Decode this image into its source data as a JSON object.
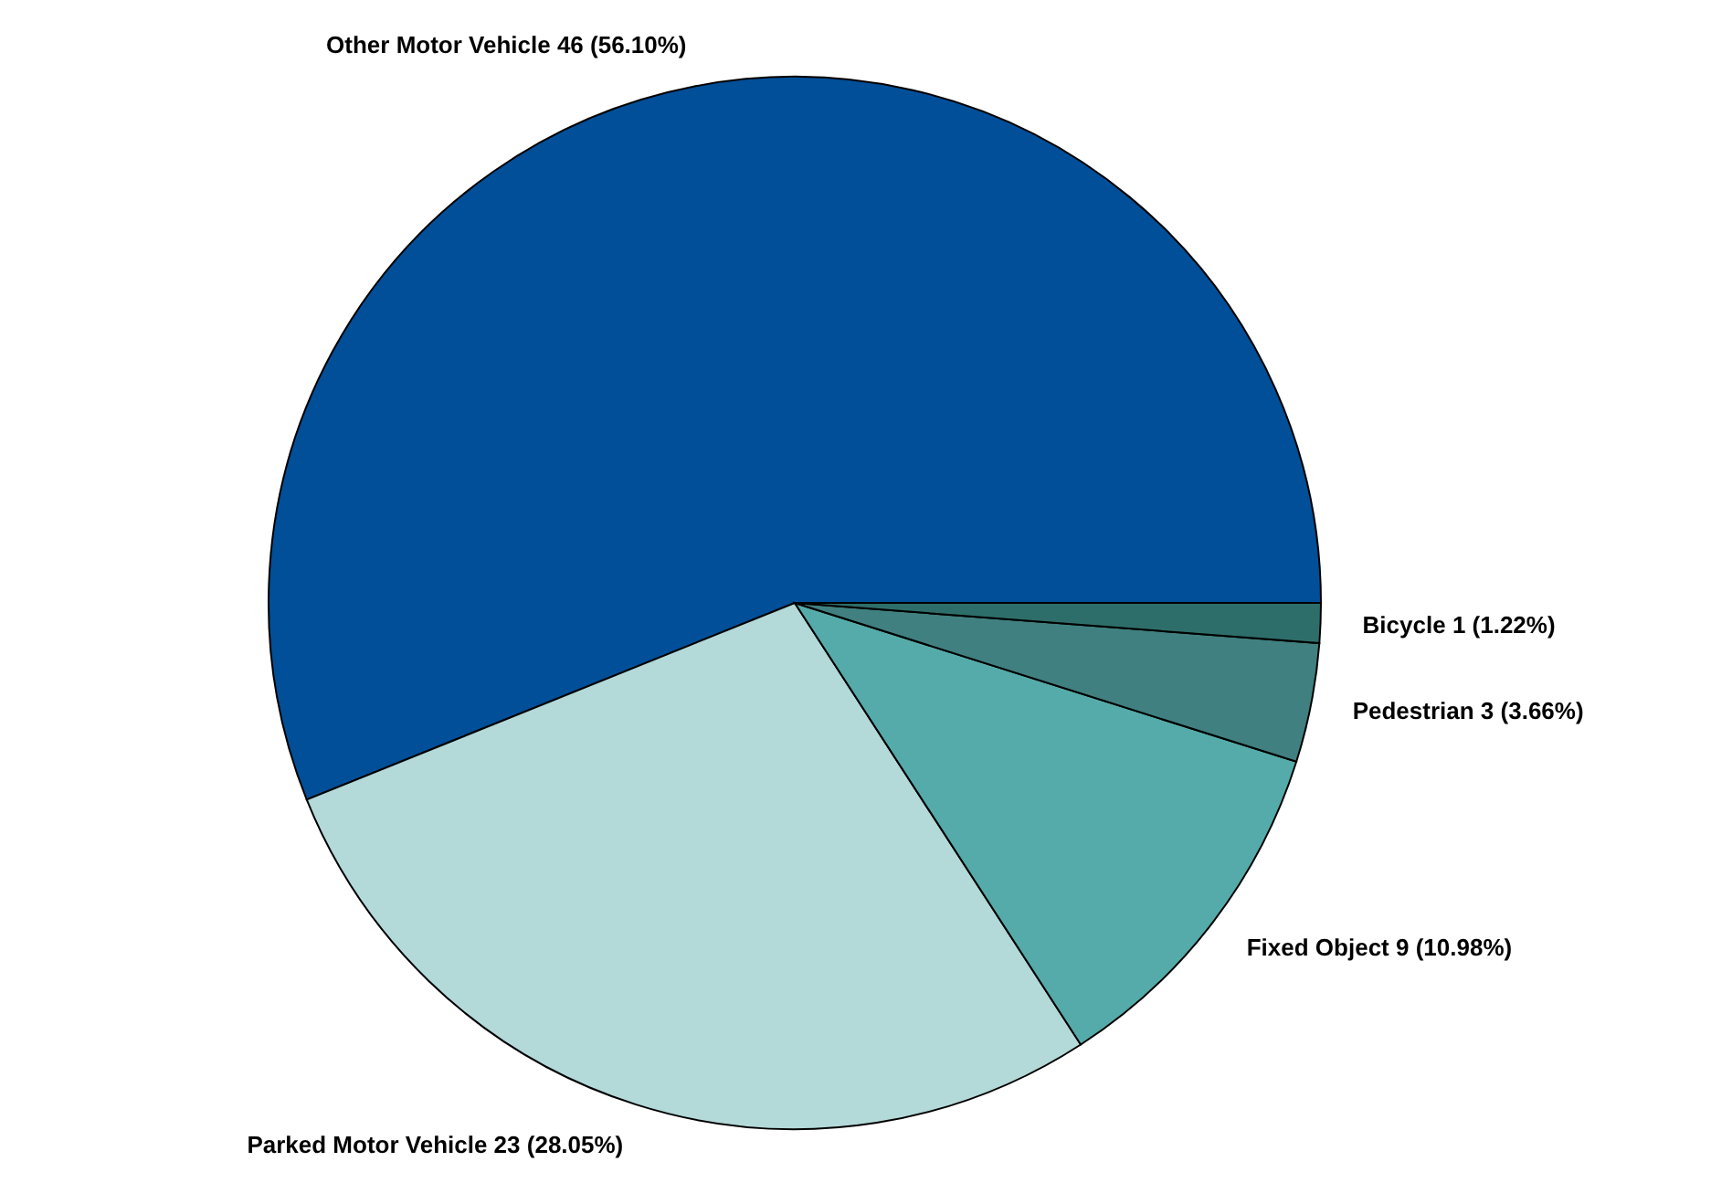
{
  "chart_data": {
    "type": "pie",
    "categories": [
      "Other Motor Vehicle",
      "Parked Motor Vehicle",
      "Fixed Object",
      "Pedestrian",
      "Bicycle"
    ],
    "values": [
      46,
      23,
      9,
      3,
      1
    ],
    "value_labels": [
      "46 (56.10%)",
      "23 (28.05%)",
      "9 (10.98%)",
      "3 (3.66%)",
      "1 (1.22%)"
    ],
    "colors": [
      "#004f98",
      "#b3d9d9",
      "#55abaa",
      "#408080",
      "#2e6e6a"
    ]
  }
}
